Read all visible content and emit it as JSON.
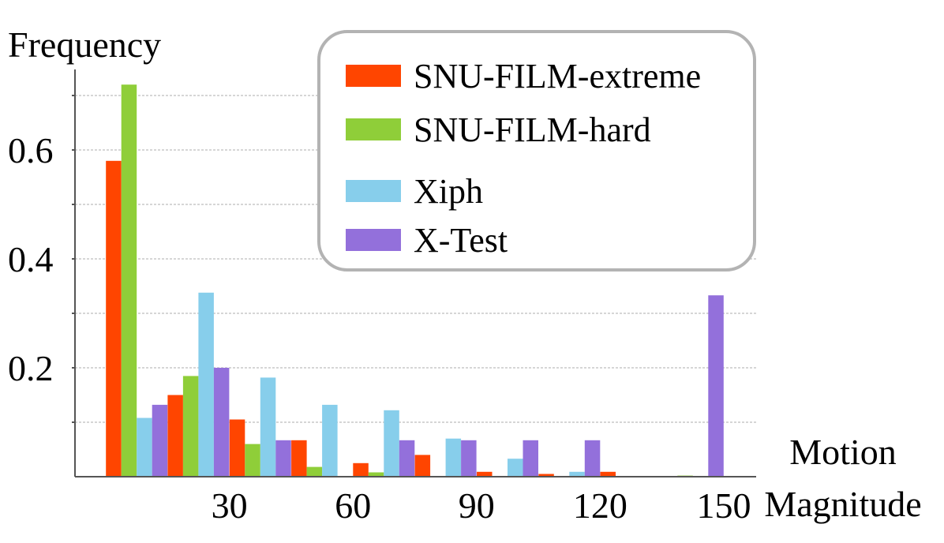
{
  "chart_data": {
    "type": "bar",
    "ylabel": "Frequency",
    "xlabel": "Motion Magnitude",
    "xlabel_lines": [
      "Motion",
      "Magnitude"
    ],
    "ylim": [
      0,
      0.75
    ],
    "yticks": [
      0.2,
      0.4,
      0.6
    ],
    "ytick_labels": [
      "0.2",
      "0.4",
      "0.6"
    ],
    "xticks": [
      30,
      60,
      90,
      120,
      150
    ],
    "xtick_labels": [
      "30",
      "60",
      "90",
      "120",
      "150"
    ],
    "bin_width": 15,
    "bins": [
      7.5,
      22.5,
      37.5,
      52.5,
      67.5,
      82.5,
      97.5,
      112.5,
      127.5,
      142.5
    ],
    "grid": true,
    "legend_position": "top-right",
    "series": [
      {
        "name": "SNU-FILM-extreme",
        "color": "#ff4500",
        "values": [
          0.58,
          0.15,
          0.105,
          0.067,
          0.025,
          0.04,
          0.009,
          0.005,
          0.009,
          0.0
        ]
      },
      {
        "name": "SNU-FILM-hard",
        "color": "#8fce39",
        "values": [
          0.72,
          0.185,
          0.06,
          0.018,
          0.008,
          0.0,
          0.0,
          0.0,
          0.0,
          0.002
        ]
      },
      {
        "name": "Xiph",
        "color": "#87ceeb",
        "values": [
          0.108,
          0.338,
          0.182,
          0.132,
          0.122,
          0.07,
          0.033,
          0.009,
          0.0,
          0.0
        ]
      },
      {
        "name": "X-Test",
        "color": "#9370db",
        "values": [
          0.132,
          0.2,
          0.067,
          0.0,
          0.067,
          0.067,
          0.067,
          0.067,
          0.0,
          0.333
        ]
      }
    ]
  }
}
